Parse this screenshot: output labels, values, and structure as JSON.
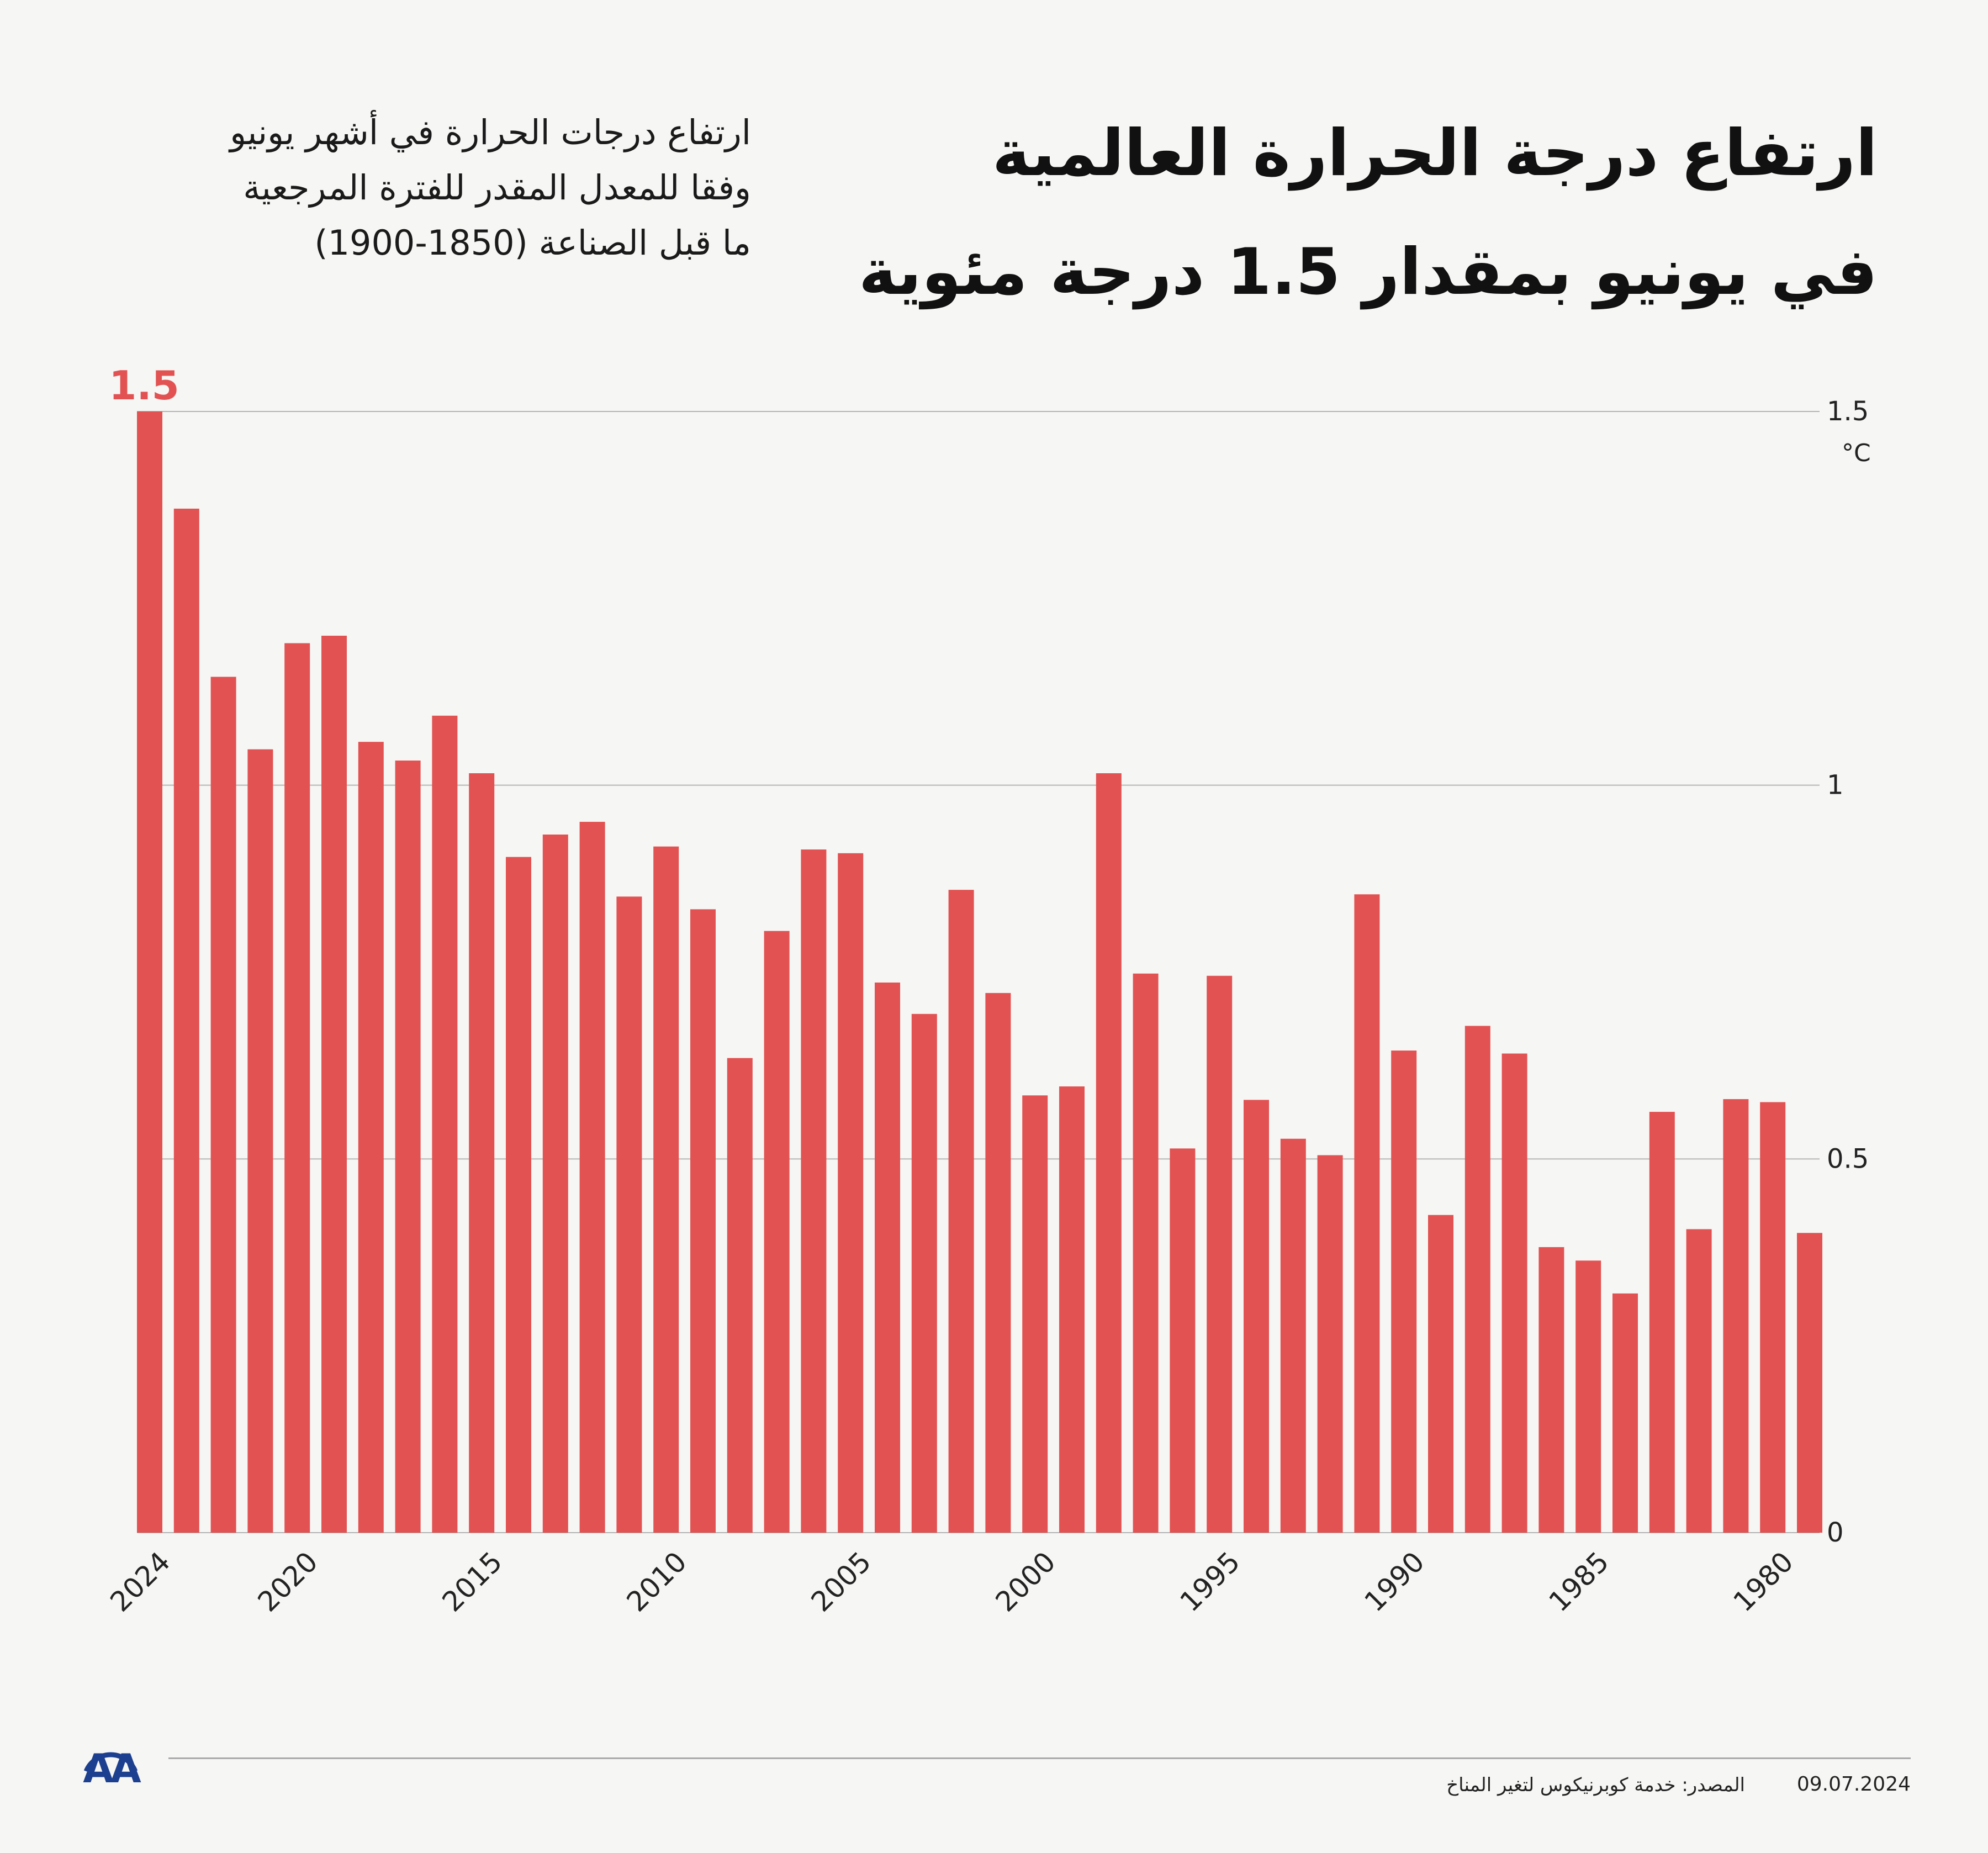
{
  "header": {
    "title_lines": [
      "ارتفاع درجة الحرارة العالمية",
      "في يونيو بمقدار 1.5 درجة مئوية"
    ],
    "subtitle_lines": [
      "ارتفاع درجات الحرارة في أشهر يونيو",
      "وفقا للمعدل المقدر للفترة المرجعية",
      "ما قبل الصناعة (1850-1900)"
    ]
  },
  "chart_data": {
    "type": "bar",
    "title": "ارتفاع درجة الحرارة العالمية في يونيو بمقدار 1.5 درجة مئوية",
    "ylabel": "°C",
    "xlabel": "",
    "ylim": [
      0,
      1.5
    ],
    "y_ticks": [
      "0",
      "0.5",
      "1",
      "1.5"
    ],
    "x_tick_labels": [
      "2024",
      "2020",
      "2015",
      "2010",
      "2005",
      "2000",
      "1995",
      "1990",
      "1985",
      "1980"
    ],
    "highlight_label": "1.5",
    "categories": [
      2024,
      2023,
      2022,
      2021,
      2020,
      2019,
      2018,
      2017,
      2016,
      2015,
      2014,
      2013,
      2012,
      2011,
      2010,
      2009,
      2008,
      2007,
      2006,
      2005,
      2004,
      2003,
      2002,
      2001,
      2000,
      1999,
      1998,
      1997,
      1996,
      1995,
      1994,
      1993,
      1992,
      1991,
      1990,
      1989,
      1988,
      1987,
      1986,
      1985,
      1984,
      1983,
      1982,
      1981,
      1980,
      1979
    ],
    "values": [
      1.5,
      1.37,
      1.145,
      1.048,
      1.19,
      1.2,
      1.058,
      1.033,
      1.093,
      1.016,
      0.904,
      0.934,
      0.951,
      0.851,
      0.918,
      0.834,
      0.635,
      0.805,
      0.914,
      0.909,
      0.736,
      0.694,
      0.86,
      0.722,
      0.585,
      0.597,
      1.016,
      0.748,
      0.514,
      0.745,
      0.579,
      0.527,
      0.505,
      0.854,
      0.645,
      0.425,
      0.678,
      0.641,
      0.382,
      0.364,
      0.32,
      0.563,
      0.406,
      0.58,
      0.576,
      0.401
    ]
  },
  "footer": {
    "logo_text": "AA",
    "source": "المصدر: خدمة كوبرنيكوس لتغير المناخ",
    "date": "09.07.2024"
  },
  "colors": {
    "bar": "#e25252",
    "highlight": "#e25252",
    "grid": "#b5b5b5",
    "logo": "#1c3f8f"
  }
}
